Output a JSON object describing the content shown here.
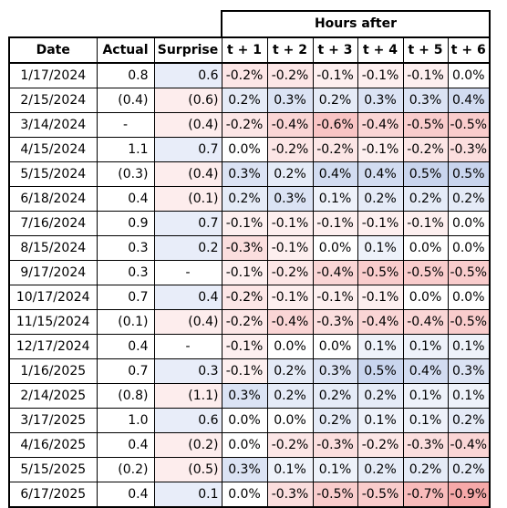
{
  "table": {
    "group_header": "Hours after",
    "columns": [
      "Date",
      "Actual",
      "Surprise",
      "t + 1",
      "t + 2",
      "t + 3",
      "t + 4",
      "t + 5",
      "t + 6"
    ],
    "rows": [
      {
        "date": "1/17/2024",
        "actual": "0.8",
        "surprise": "0.6",
        "hours": [
          "-0.2%",
          "-0.2%",
          "-0.1%",
          "-0.1%",
          "-0.1%",
          "0.0%"
        ]
      },
      {
        "date": "2/15/2024",
        "actual": "(0.4)",
        "surprise": "(0.6)",
        "hours": [
          "0.2%",
          "0.3%",
          "0.2%",
          "0.3%",
          "0.3%",
          "0.4%"
        ]
      },
      {
        "date": "3/14/2024",
        "actual": "-",
        "surprise": "(0.4)",
        "hours": [
          "-0.2%",
          "-0.4%",
          "-0.6%",
          "-0.4%",
          "-0.5%",
          "-0.5%"
        ]
      },
      {
        "date": "4/15/2024",
        "actual": "1.1",
        "surprise": "0.7",
        "hours": [
          "0.0%",
          "-0.2%",
          "-0.2%",
          "-0.1%",
          "-0.2%",
          "-0.3%"
        ]
      },
      {
        "date": "5/15/2024",
        "actual": "(0.3)",
        "surprise": "(0.4)",
        "hours": [
          "0.3%",
          "0.2%",
          "0.4%",
          "0.4%",
          "0.5%",
          "0.5%"
        ]
      },
      {
        "date": "6/18/2024",
        "actual": "0.4",
        "surprise": "(0.1)",
        "hours": [
          "0.2%",
          "0.3%",
          "0.1%",
          "0.2%",
          "0.2%",
          "0.2%"
        ]
      },
      {
        "date": "7/16/2024",
        "actual": "0.9",
        "surprise": "0.7",
        "hours": [
          "-0.1%",
          "-0.1%",
          "-0.1%",
          "-0.1%",
          "-0.1%",
          "0.0%"
        ]
      },
      {
        "date": "8/15/2024",
        "actual": "0.3",
        "surprise": "0.2",
        "hours": [
          "-0.3%",
          "-0.1%",
          "0.0%",
          "0.1%",
          "0.0%",
          "0.0%"
        ]
      },
      {
        "date": "9/17/2024",
        "actual": "0.3",
        "surprise": "-",
        "hours": [
          "-0.1%",
          "-0.2%",
          "-0.4%",
          "-0.5%",
          "-0.5%",
          "-0.5%"
        ]
      },
      {
        "date": "10/17/2024",
        "actual": "0.7",
        "surprise": "0.4",
        "hours": [
          "-0.2%",
          "-0.1%",
          "-0.1%",
          "-0.1%",
          "0.0%",
          "0.0%"
        ]
      },
      {
        "date": "11/15/2024",
        "actual": "(0.1)",
        "surprise": "(0.4)",
        "hours": [
          "-0.2%",
          "-0.4%",
          "-0.3%",
          "-0.4%",
          "-0.4%",
          "-0.5%"
        ]
      },
      {
        "date": "12/17/2024",
        "actual": "0.4",
        "surprise": "-",
        "hours": [
          "-0.1%",
          "0.0%",
          "0.0%",
          "0.1%",
          "0.1%",
          "0.1%"
        ]
      },
      {
        "date": "1/16/2025",
        "actual": "0.7",
        "surprise": "0.3",
        "hours": [
          "-0.1%",
          "0.2%",
          "0.3%",
          "0.5%",
          "0.4%",
          "0.3%"
        ]
      },
      {
        "date": "2/14/2025",
        "actual": "(0.8)",
        "surprise": "(1.1)",
        "hours": [
          "0.3%",
          "0.2%",
          "0.2%",
          "0.2%",
          "0.1%",
          "0.1%"
        ]
      },
      {
        "date": "3/17/2025",
        "actual": "1.0",
        "surprise": "0.6",
        "hours": [
          "0.0%",
          "0.0%",
          "0.2%",
          "0.1%",
          "0.1%",
          "0.2%"
        ]
      },
      {
        "date": "4/16/2025",
        "actual": "0.4",
        "surprise": "(0.2)",
        "hours": [
          "0.0%",
          "-0.2%",
          "-0.3%",
          "-0.2%",
          "-0.3%",
          "-0.4%"
        ]
      },
      {
        "date": "5/15/2025",
        "actual": "(0.2)",
        "surprise": "(0.5)",
        "hours": [
          "0.3%",
          "0.1%",
          "0.1%",
          "0.2%",
          "0.2%",
          "0.2%"
        ]
      },
      {
        "date": "6/17/2025",
        "actual": "0.4",
        "surprise": "0.1",
        "hours": [
          "0.0%",
          "-0.3%",
          "-0.5%",
          "-0.5%",
          "-0.7%",
          "-0.9%"
        ]
      }
    ]
  },
  "colors": {
    "positive": "#9db3e0",
    "negative": "#f5a3a3",
    "neutral": "#ffffff",
    "border": "#000000"
  }
}
